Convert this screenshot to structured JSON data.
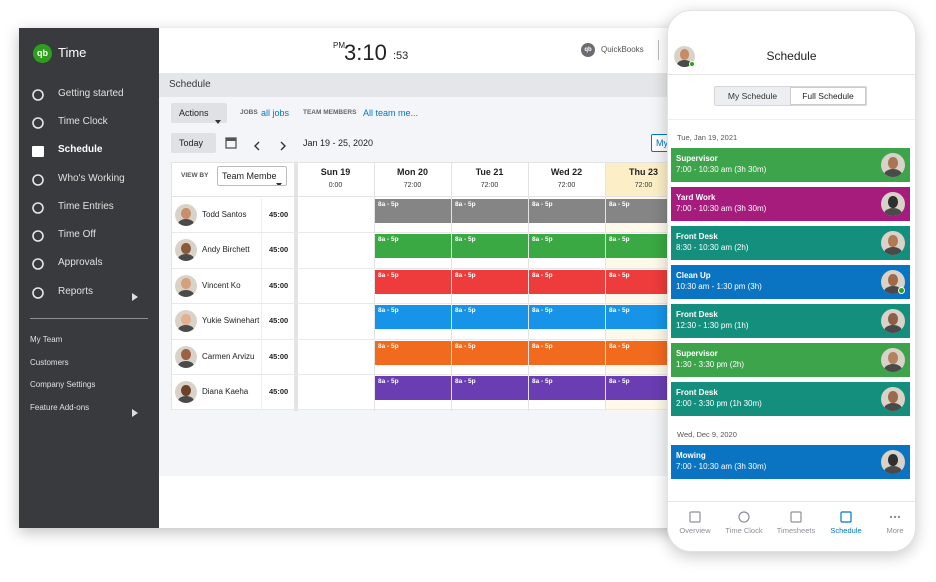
{
  "sidebar": {
    "logo": "qb",
    "app_name": "Time",
    "menu": [
      "Getting started",
      "Time Clock",
      "Schedule",
      "Who's Working",
      "Time Entries",
      "Time Off",
      "Approvals",
      "Reports"
    ],
    "secondary": [
      "My Team",
      "Customers",
      "Company Settings",
      "Feature Add-ons"
    ]
  },
  "header": {
    "clock_period": "PM",
    "clock_time": "3:10",
    "clock_seconds": ":53",
    "brand_logo": "qb",
    "brand": "QuickBooks"
  },
  "page_title": "Schedule",
  "toolbar": {
    "actions": "Actions",
    "jobs_label": "JOBS",
    "jobs_value": "all jobs",
    "members_label": "TEAM MEMBERS",
    "members_value": "All team me..."
  },
  "week_nav": {
    "today": "Today",
    "range": "Jan 19 - 25, 2020",
    "view_button": "My"
  },
  "grid": {
    "view_by_label": "VIEW BY",
    "view_by_value": "Team Membe",
    "days": [
      {
        "label": "Sun 19",
        "hours": "0:00"
      },
      {
        "label": "Mon 20",
        "hours": "72:00"
      },
      {
        "label": "Tue 21",
        "hours": "72:00"
      },
      {
        "label": "Wed 22",
        "hours": "72:00"
      },
      {
        "label": "Thu 23",
        "hours": "72:00"
      }
    ],
    "members": [
      {
        "name": "Todd Santos",
        "hours": "45:00",
        "color": "#858585",
        "shifts": [
          null,
          "8a - 5p",
          "8a - 5p",
          "8a - 5p",
          "8a - 5p"
        ]
      },
      {
        "name": "Andy Birchett",
        "hours": "45:00",
        "color": "#3aa843",
        "shifts": [
          null,
          "8a - 5p",
          "8a - 5p",
          "8a - 5p",
          "8a - 5p"
        ]
      },
      {
        "name": "Vincent Ko",
        "hours": "45:00",
        "color": "#ee3b3b",
        "shifts": [
          null,
          "8a - 5p",
          "8a - 5p",
          "8a - 5p",
          "8a - 5p"
        ]
      },
      {
        "name": "Yukie Swinehart",
        "hours": "45:00",
        "color": "#1794e8",
        "shifts": [
          null,
          "8a - 5p",
          "8a - 5p",
          "8a - 5p",
          "8a - 5p"
        ]
      },
      {
        "name": "Carmen Arvizu",
        "hours": "45:00",
        "color": "#f26a1e",
        "shifts": [
          null,
          "8a - 5p",
          "8a - 5p",
          "8a - 5p",
          "8a - 5p"
        ]
      },
      {
        "name": "Diana Kaeha",
        "hours": "45:00",
        "color": "#6a3db2",
        "shifts": [
          null,
          "8a - 5p",
          "8a - 5p",
          "8a - 5p",
          "8a - 5p"
        ]
      }
    ]
  },
  "phone": {
    "title": "Schedule",
    "tabs": [
      "My Schedule",
      "Full Schedule"
    ],
    "groups": [
      {
        "date": "Tue, Jan 19, 2021",
        "shifts": [
          {
            "role": "Supervisor",
            "time": "7:00 - 10:30 am (3h 30m)",
            "color": "#3ea44c"
          },
          {
            "role": "Yard Work",
            "time": "7:00 - 10:30 am (3h 30m)",
            "color": "#a61c7c"
          },
          {
            "role": "Front Desk",
            "time": "8:30 - 10:30 am (2h)",
            "color": "#158f7d"
          },
          {
            "role": "Clean Up",
            "time": "10:30 am - 1:30 pm (3h)",
            "color": "#0b74c2"
          },
          {
            "role": "Front Desk",
            "time": "12:30 - 1:30 pm (1h)",
            "color": "#158f7d"
          },
          {
            "role": "Supervisor",
            "time": "1:30 - 3:30 pm (2h)",
            "color": "#3ea44c"
          },
          {
            "role": "Front Desk",
            "time": "2:00 - 3:30 pm (1h 30m)",
            "color": "#158f7d"
          }
        ]
      },
      {
        "date": "Wed, Dec 9, 2020",
        "shifts": [
          {
            "role": "Mowing",
            "time": "7:00 - 10:30 am (3h 30m)",
            "color": "#0b74c2"
          }
        ]
      }
    ],
    "nav": [
      "Overview",
      "Time Clock",
      "Timesheets",
      "Schedule",
      "More"
    ]
  }
}
